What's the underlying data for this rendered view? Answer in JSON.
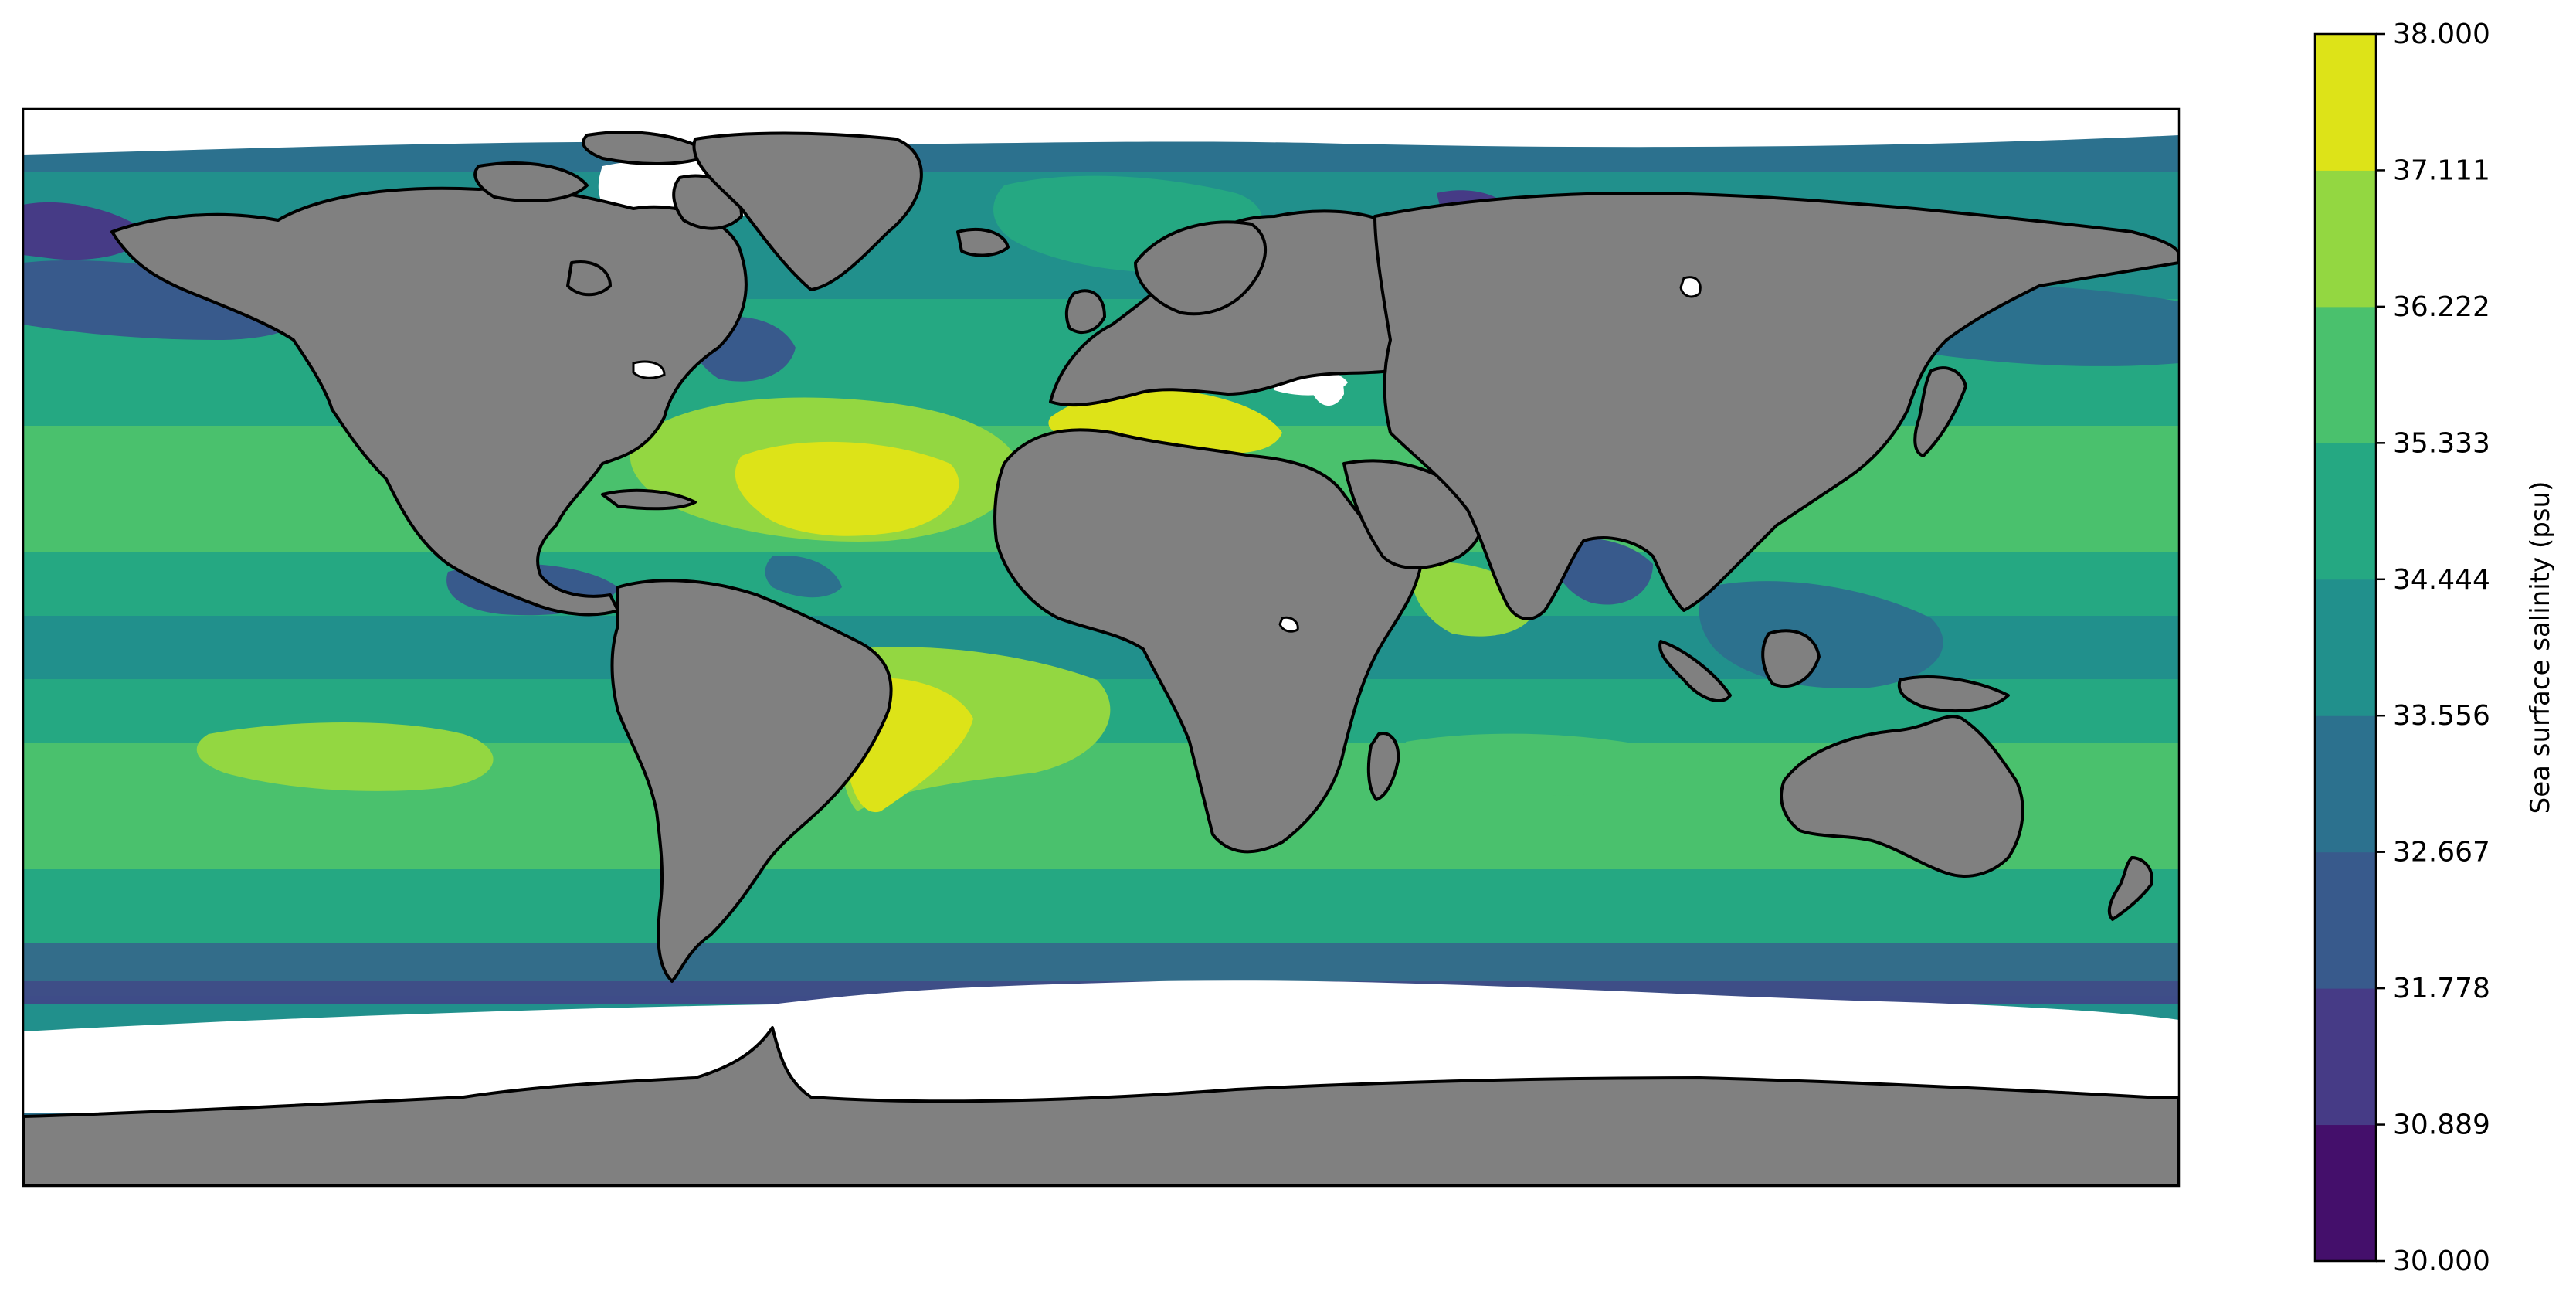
{
  "colorbar": {
    "label": "Sea surface salinity (psu)",
    "range": [
      30.0,
      38.0
    ],
    "tick_labels": [
      "30.000",
      "30.889",
      "31.778",
      "32.667",
      "33.556",
      "34.444",
      "35.333",
      "36.222",
      "37.111",
      "38.000"
    ],
    "colors": [
      "#440f6b",
      "#463b86",
      "#385a8c",
      "#2c718e",
      "#21908c",
      "#25a882",
      "#4ac16d",
      "#93d741",
      "#dde318"
    ]
  },
  "map": {
    "projection": "plate-carree",
    "land_color": "#808080",
    "coastline_color": "#000000",
    "no_data_color": "#ffffff"
  }
}
